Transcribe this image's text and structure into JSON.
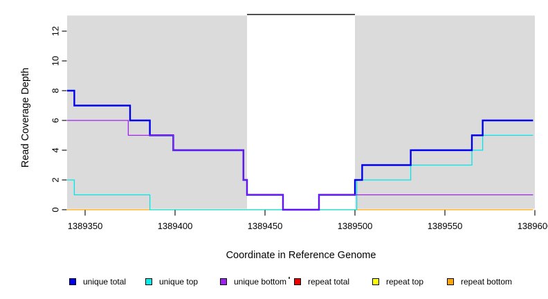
{
  "chart_data": {
    "type": "line",
    "step": "hv",
    "title": "",
    "xlabel": "Coordinate in Reference Genome",
    "ylabel": "Read Coverage Depth",
    "xlim": [
      1389340,
      1389600
    ],
    "ylim": [
      0,
      13.14
    ],
    "grid": false,
    "legend_position": "bottom",
    "x_ticks": [
      {
        "value": 1389350,
        "label": "1389350"
      },
      {
        "value": 1389400,
        "label": "1389400"
      },
      {
        "value": 1389450,
        "label": "1389450"
      },
      {
        "value": 1389500,
        "label": "1389500"
      },
      {
        "value": 1389550,
        "label": "1389550"
      },
      {
        "value": 1389600,
        "label": "1389600"
      }
    ],
    "y_ticks": [
      {
        "value": 0,
        "label": "0"
      },
      {
        "value": 2,
        "label": "2"
      },
      {
        "value": 4,
        "label": "4"
      },
      {
        "value": 6,
        "label": "6"
      },
      {
        "value": 8,
        "label": "8"
      },
      {
        "value": 10,
        "label": "10"
      },
      {
        "value": 12,
        "label": "12"
      }
    ],
    "background_regions": [
      {
        "name": "shaded-region-left",
        "x0": 1389340,
        "x1": 1389440,
        "color": "#DBDBDB"
      },
      {
        "name": "shaded-region-right",
        "x0": 1389500,
        "x1": 1389600,
        "color": "#DBDBDB"
      }
    ],
    "annotation_segment": {
      "name": "gap-top-marker",
      "x0": 1389440,
      "x1": 1389500,
      "y": 13.12,
      "color": "#000000"
    },
    "series": [
      {
        "name": "unique total",
        "color": "#0000EE",
        "width": 2.4,
        "points": [
          [
            1389340,
            8
          ],
          [
            1389344,
            8
          ],
          [
            1389344,
            7
          ],
          [
            1389375,
            7
          ],
          [
            1389375,
            6
          ],
          [
            1389386,
            6
          ],
          [
            1389386,
            5
          ],
          [
            1389399,
            5
          ],
          [
            1389399,
            4
          ],
          [
            1389438,
            4
          ],
          [
            1389438,
            2
          ],
          [
            1389440,
            2
          ],
          [
            1389440,
            1
          ],
          [
            1389460,
            1
          ],
          [
            1389460,
            0
          ],
          [
            1389480,
            0
          ],
          [
            1389480,
            1
          ],
          [
            1389500,
            1
          ],
          [
            1389500,
            2
          ],
          [
            1389504,
            2
          ],
          [
            1389504,
            3
          ],
          [
            1389531,
            3
          ],
          [
            1389531,
            4
          ],
          [
            1389565,
            4
          ],
          [
            1389565,
            5
          ],
          [
            1389571,
            5
          ],
          [
            1389571,
            6
          ],
          [
            1389599,
            6
          ]
        ]
      },
      {
        "name": "unique top",
        "color": "#00E6E6",
        "width": 1.3,
        "points": [
          [
            1389340,
            2
          ],
          [
            1389344,
            2
          ],
          [
            1389344,
            1
          ],
          [
            1389386,
            1
          ],
          [
            1389386,
            0
          ],
          [
            1389501,
            0
          ],
          [
            1389501,
            2
          ],
          [
            1389531,
            2
          ],
          [
            1389531,
            3
          ],
          [
            1389565,
            3
          ],
          [
            1389565,
            4
          ],
          [
            1389571,
            4
          ],
          [
            1389571,
            5
          ],
          [
            1389599,
            5
          ]
        ]
      },
      {
        "name": "unique bottom",
        "color": "#A020F0",
        "width": 1.3,
        "points": [
          [
            1389340,
            6
          ],
          [
            1389374,
            6
          ],
          [
            1389374,
            5
          ],
          [
            1389399,
            5
          ],
          [
            1389399,
            4
          ],
          [
            1389438,
            4
          ],
          [
            1389438,
            2
          ],
          [
            1389440,
            2
          ],
          [
            1389440,
            1
          ],
          [
            1389460,
            1
          ],
          [
            1389460,
            0
          ],
          [
            1389480,
            0
          ],
          [
            1389480,
            1
          ],
          [
            1389599,
            1
          ]
        ]
      },
      {
        "name": "repeat total",
        "color": "#EE0000",
        "width": 1.3,
        "points": []
      },
      {
        "name": "repeat top",
        "color": "#FFFF00",
        "width": 1.3,
        "points": []
      },
      {
        "name": "repeat bottom",
        "color": "#FFA500",
        "width": 1.3,
        "points": [
          [
            1389340,
            0
          ],
          [
            1389599,
            0
          ]
        ]
      }
    ],
    "draw_order": [
      "repeat bottom",
      "repeat top",
      "repeat total",
      "unique top",
      "unique total",
      "unique bottom"
    ],
    "legend": [
      {
        "label": "unique total",
        "color": "#0000EE"
      },
      {
        "label": "unique top",
        "color": "#00EEEE"
      },
      {
        "label": "unique bottom",
        "color": "#A020F0"
      },
      {
        "label": "repeat total",
        "color": "#EE0000"
      },
      {
        "label": "repeat top",
        "color": "#FFFF00"
      },
      {
        "label": "repeat bottom",
        "color": "#FFA500"
      }
    ]
  }
}
